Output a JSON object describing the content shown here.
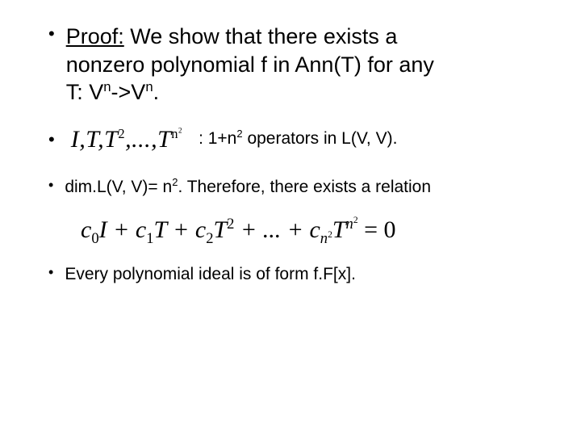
{
  "colors": {
    "text": "#000000",
    "background": "#ffffff"
  },
  "fonts": {
    "body": "Arial",
    "math": "Times New Roman, serif"
  },
  "bullets": {
    "proof_label": "Proof:",
    "proof_rest_l1": " We show that there exists a",
    "proof_l2_a": "nonzero polynomial f in Ann(T) for any",
    "proof_l3_a": "T: V",
    "proof_l3_b": "->V",
    "proof_l3_c": ".",
    "sup_n": "n",
    "ops_math_html": "I,T,T<sup>2</sup>,...,T<sup>n<sup>2</sup></sup>",
    "ops_desc_a": ": 1+n",
    "ops_desc_b": " operators in L(V, V).",
    "sup_2": "2",
    "dim_a": "dim.L(V, V)= n",
    "dim_b": ". Therefore, there exists a relation",
    "eq_html": "c<sub><span class=\"rm\">0</span></sub>I + c<sub><span class=\"rm\">1</span></sub>T + c<sub><span class=\"rm\">2</span></sub>T<sup><span class=\"rm\">2</span></sup> + ... + c<sub>n<sup><span class=\"rm\">2</span></sup></sub>T<sup>n<sup><span class=\"rm\">2</span></sup></sup> <span class=\"rm\">= 0</span>",
    "ideal": "Every polynomial ideal is of form f.F[x]."
  }
}
